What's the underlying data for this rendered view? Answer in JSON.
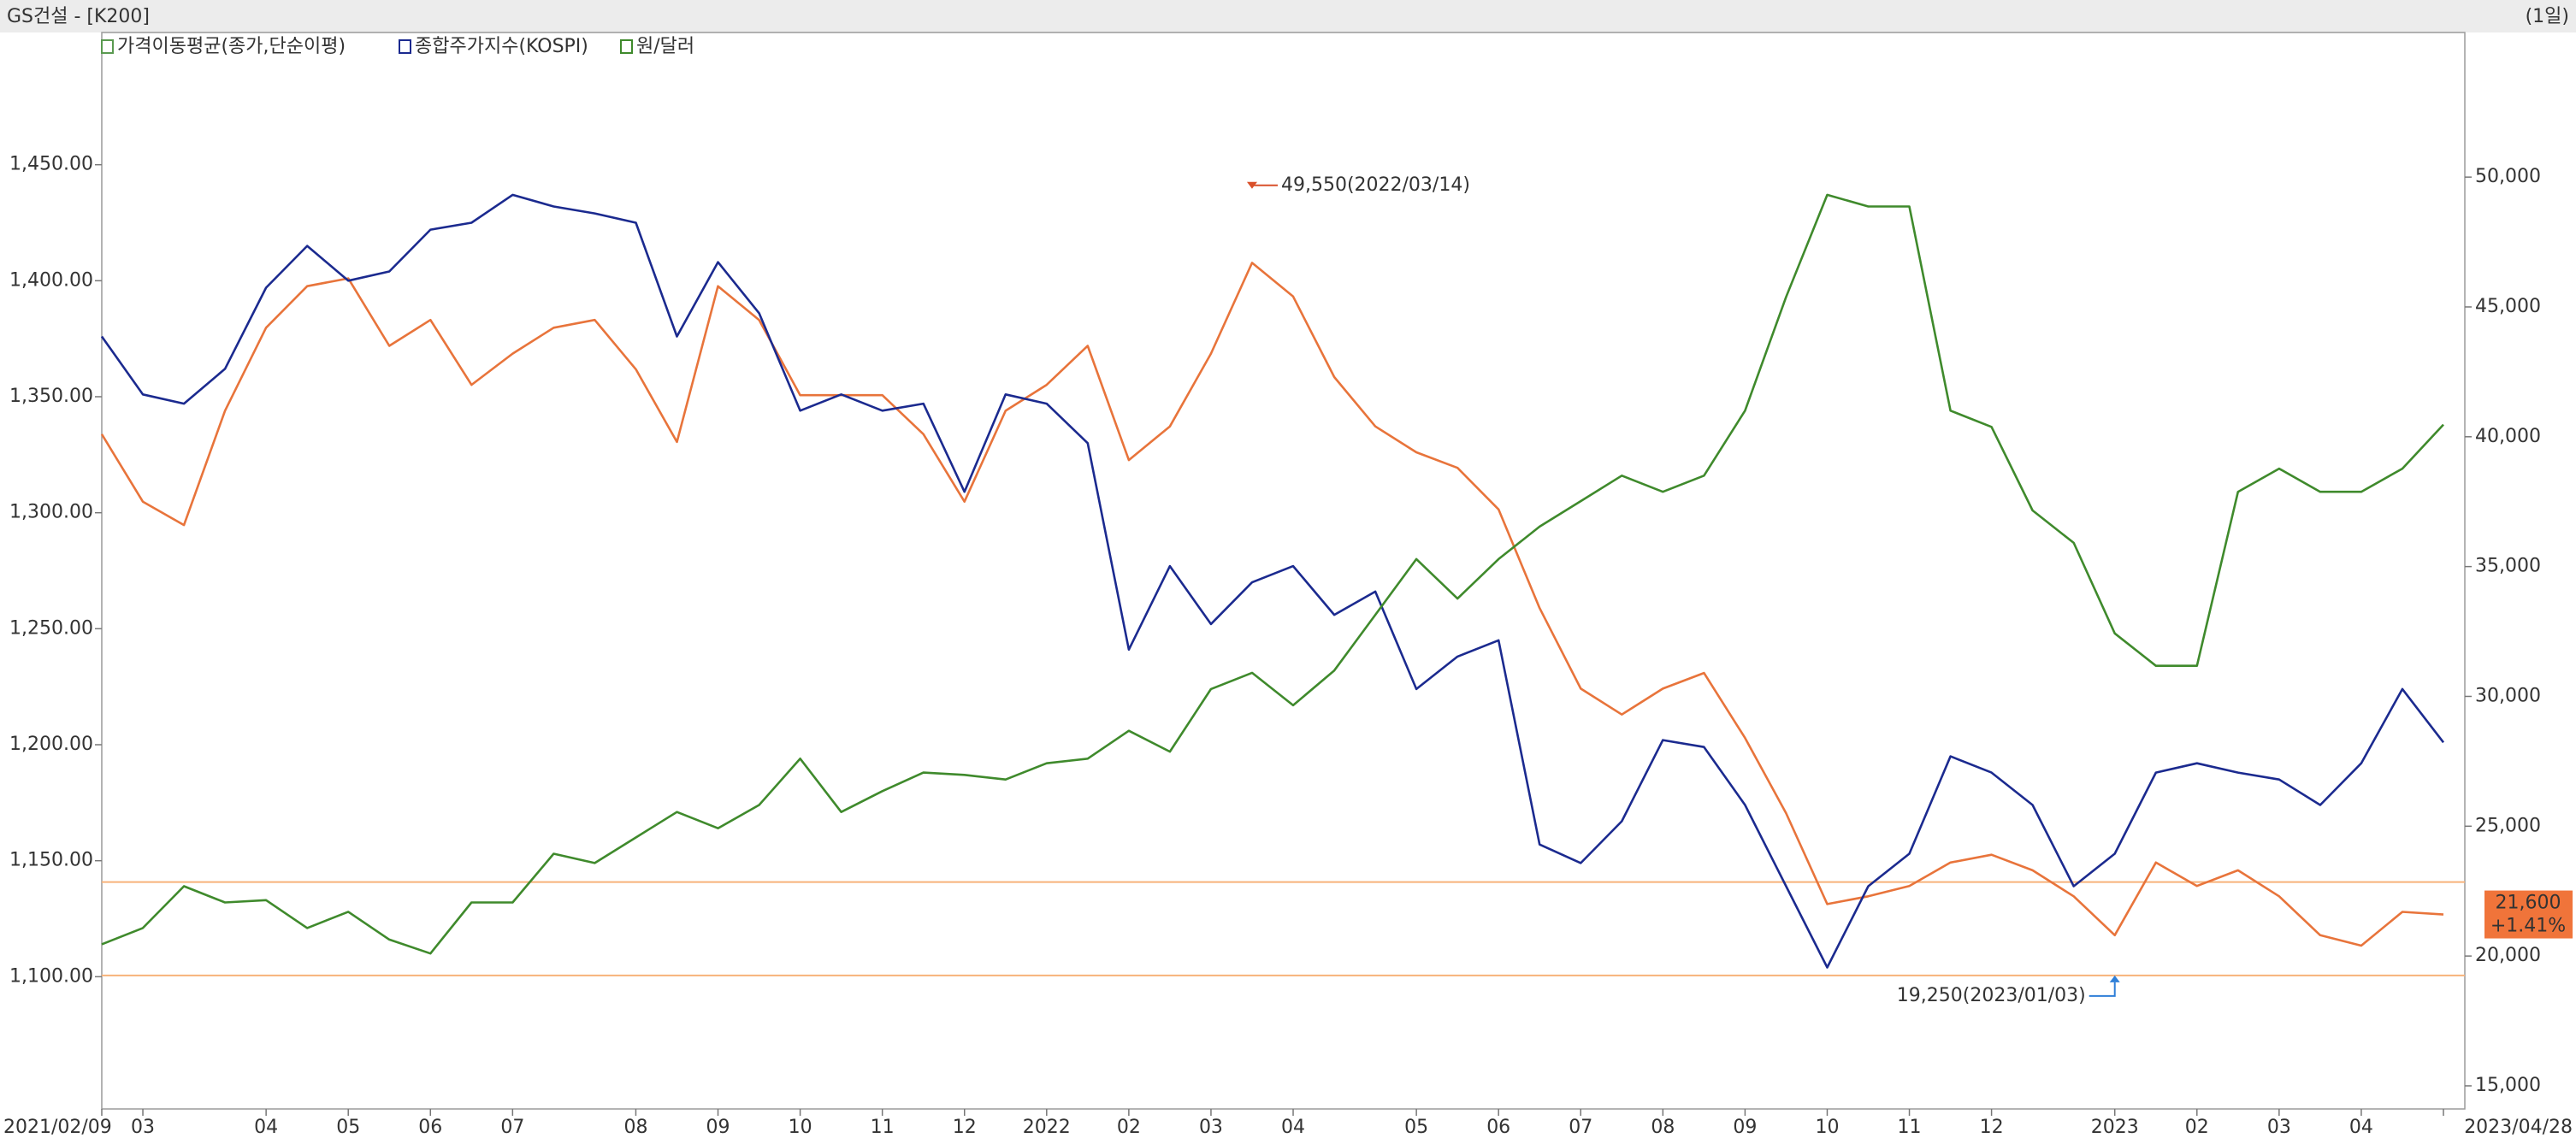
{
  "chart_data": {
    "type": "line",
    "title": "GS건설 - [K200]",
    "period": "(1일)",
    "indicator": "가격이동평균(종가,단순이평)",
    "categories": [
      "2021/02/09",
      "03",
      null,
      null,
      "04",
      null,
      "05",
      null,
      "06",
      null,
      "07",
      null,
      null,
      "08",
      null,
      "09",
      null,
      "10",
      null,
      "11",
      null,
      "12",
      null,
      "2022",
      null,
      "02",
      null,
      "03",
      null,
      "04",
      null,
      null,
      "05",
      null,
      "06",
      null,
      "07",
      null,
      "08",
      null,
      "09",
      null,
      "10",
      null,
      "11",
      null,
      "12",
      null,
      null,
      "2023",
      null,
      "02",
      null,
      "03",
      null,
      "04",
      null,
      "2023/04/28"
    ],
    "ylim": [
      1043,
      1507
    ],
    "yticks": [
      {
        "value": 1100,
        "label": "1,100.00"
      },
      {
        "value": 1150,
        "label": "1,150.00"
      },
      {
        "value": 1200,
        "label": "1,200.00"
      },
      {
        "value": 1250,
        "label": "1,250.00"
      },
      {
        "value": 1300,
        "label": "1,300.00"
      },
      {
        "value": 1350,
        "label": "1,350.00"
      },
      {
        "value": 1400,
        "label": "1,400.00"
      },
      {
        "value": 1450,
        "label": "1,450.00"
      }
    ],
    "y2lim": [
      14110,
      55570
    ],
    "y2ticks": [
      {
        "value": 15000,
        "label": "15,000"
      },
      {
        "value": 20000,
        "label": "20,000"
      },
      {
        "value": 25000,
        "label": "25,000"
      },
      {
        "value": 30000,
        "label": "30,000"
      },
      {
        "value": 35000,
        "label": "35,000"
      },
      {
        "value": 40000,
        "label": "40,000"
      },
      {
        "value": 45000,
        "label": "45,000"
      },
      {
        "value": 50000,
        "label": "50,000"
      }
    ],
    "series": [
      {
        "color": "#e8743b",
        "axis": "y2",
        "values": [
          40100,
          37500,
          36600,
          41000,
          44200,
          45800,
          46100,
          43500,
          44500,
          42000,
          43200,
          44200,
          44500,
          42600,
          39800,
          45800,
          44500,
          41600,
          41600,
          41600,
          40100,
          37500,
          41000,
          42000,
          43500,
          39100,
          40400,
          43200,
          46700,
          45400,
          42300,
          40400,
          39400,
          38800,
          37200,
          33400,
          30300,
          29300,
          30300,
          30900,
          28400,
          25500,
          22000,
          22300,
          22700,
          23600,
          23900,
          23300,
          22300,
          20800,
          23600,
          22700,
          23300,
          22300,
          20800,
          20400,
          21700,
          21600
        ]
      },
      {
        "name": "종합주가지수(KOSPI)",
        "color": "#1b2a8f",
        "values": [
          1376,
          1351,
          1347,
          1362,
          1397,
          1415,
          1400,
          1404,
          1422,
          1425,
          1437,
          1432,
          1429,
          1425,
          1376,
          1408,
          1386,
          1344,
          1351,
          1344,
          1347,
          1309,
          1351,
          1347,
          1330,
          1241,
          1277,
          1252,
          1270,
          1277,
          1256,
          1266,
          1224,
          1238,
          1245,
          1157,
          1149,
          1167,
          1202,
          1199,
          1174,
          1139,
          1104,
          1139,
          1153,
          1195,
          1188,
          1174,
          1139,
          1153,
          1188,
          1192,
          1188,
          1185,
          1174,
          1192,
          1224,
          1201
        ]
      },
      {
        "name": "원/달러",
        "color": "#3f8a2c",
        "values": [
          1114,
          1121,
          1139,
          1132,
          1133,
          1121,
          1128,
          1116,
          1110,
          1132,
          1132,
          1153,
          1149,
          1160,
          1171,
          1164,
          1174,
          1194,
          1171,
          1180,
          1188,
          1187,
          1185,
          1192,
          1194,
          1206,
          1197,
          1224,
          1231,
          1217,
          1232,
          1256,
          1280,
          1263,
          1280,
          1294,
          1305,
          1316,
          1309,
          1316,
          1344,
          1393,
          1437,
          1432,
          1432,
          1344,
          1337,
          1301,
          1287,
          1248,
          1234,
          1234,
          1309,
          1319,
          1309,
          1309,
          1319,
          1338
        ]
      }
    ],
    "hlines": {
      "axis": "y2",
      "color": "#f7b27a",
      "values": [
        22850,
        19250
      ]
    },
    "annotations": [
      {
        "text": "49,550(2022/03/14)",
        "x": 28,
        "value": 49550,
        "color": "#d9502a",
        "side": "high"
      },
      {
        "text": "19,250(2023/01/03)",
        "x": 49,
        "value": 19250,
        "color": "#2f7fd8",
        "side": "low"
      }
    ],
    "last_value": {
      "value": 21600,
      "label": "21,600",
      "change": "+1.41%",
      "color": "#f0743a"
    }
  }
}
